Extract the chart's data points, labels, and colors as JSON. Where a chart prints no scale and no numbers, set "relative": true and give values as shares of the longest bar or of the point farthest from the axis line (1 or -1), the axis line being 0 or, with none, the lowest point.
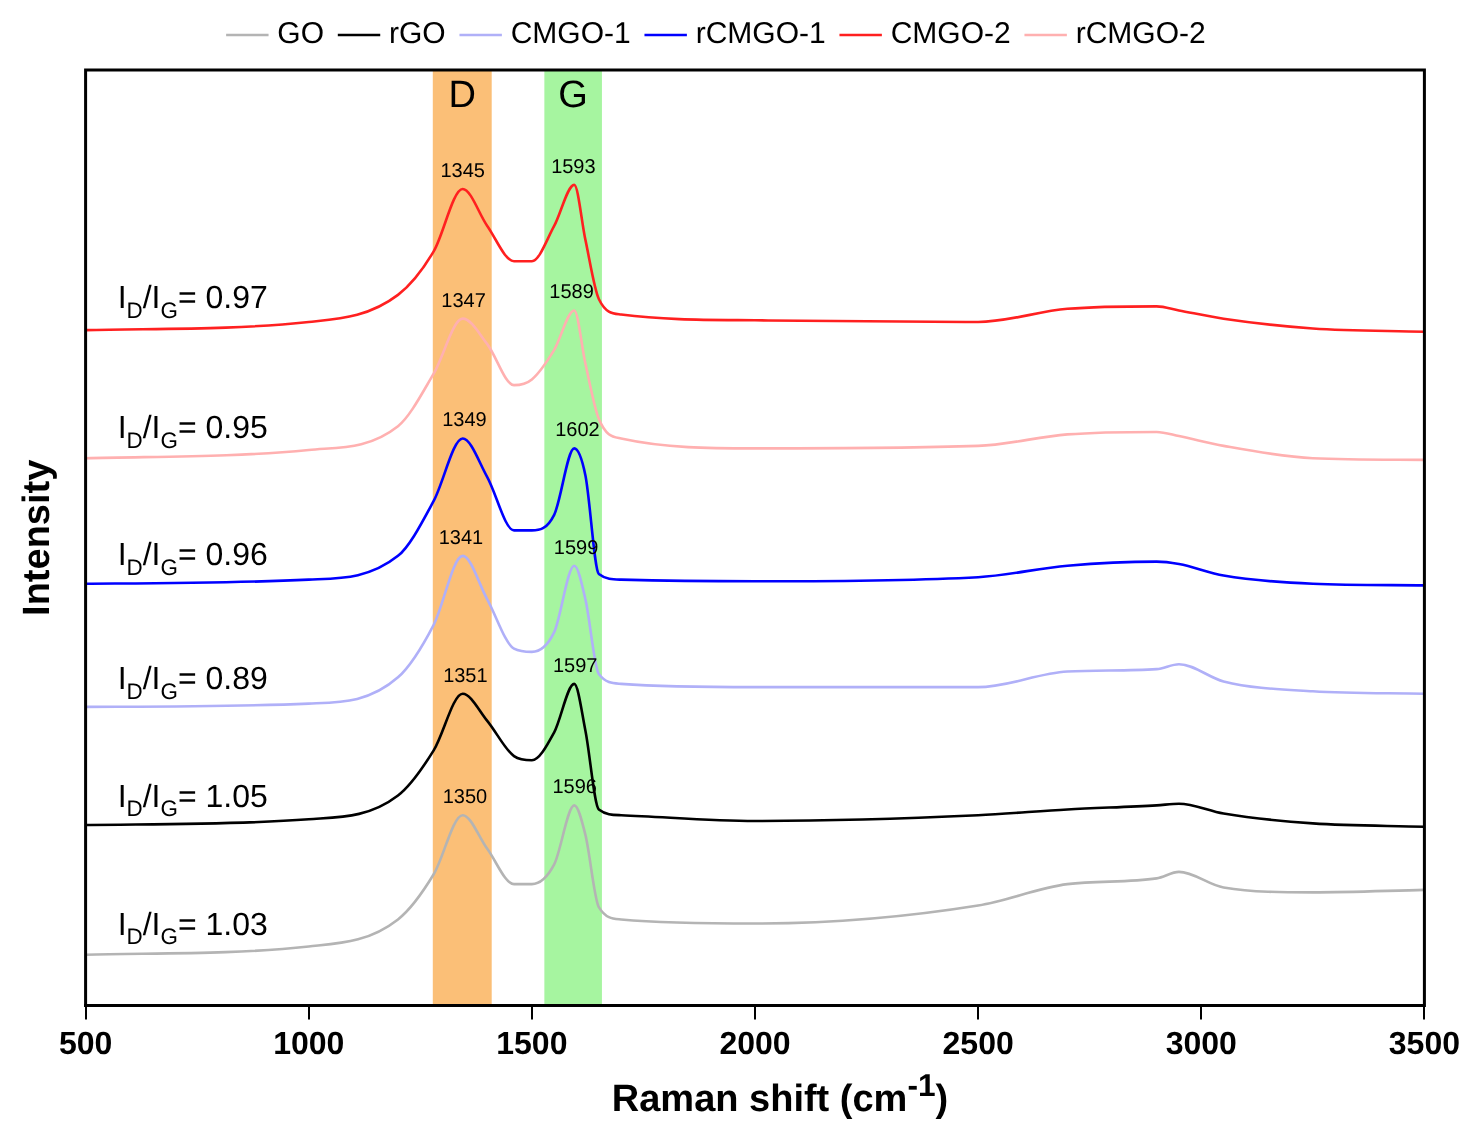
{
  "chart_data": {
    "type": "line",
    "relative": true,
    "xlabel": "Raman shift (cm$^{-1}$)",
    "ylabel": "Intensity",
    "x": [
      500,
      1000,
      1200,
      1280,
      1345,
      1400,
      1460,
      1500,
      1550,
      1595,
      1620,
      1650,
      1700,
      2000,
      2500,
      2700,
      2900,
      2950,
      3050,
      3250,
      3500
    ],
    "xlim": [
      500,
      3500
    ],
    "xticks": [
      500,
      1000,
      1500,
      2000,
      2500,
      3000,
      3500
    ],
    "series": [
      {
        "name": "GO",
        "color": "#b4b4b4",
        "values": [
          0.062,
          0.072,
          0.105,
          0.16,
          0.232,
          0.191,
          0.148,
          0.148,
          0.172,
          0.244,
          0.208,
          0.12,
          0.105,
          0.1,
          0.122,
          0.148,
          0.155,
          0.163,
          0.144,
          0.138,
          0.141
        ]
      },
      {
        "name": "rGO",
        "color": "#000000",
        "values": [
          0.22,
          0.227,
          0.256,
          0.311,
          0.38,
          0.347,
          0.304,
          0.299,
          0.333,
          0.392,
          0.335,
          0.239,
          0.232,
          0.225,
          0.232,
          0.239,
          0.244,
          0.246,
          0.234,
          0.222,
          0.218
        ]
      },
      {
        "name": "CMGO-1",
        "color": "#b0b0f8",
        "values": [
          0.364,
          0.368,
          0.4,
          0.464,
          0.548,
          0.495,
          0.435,
          0.431,
          0.455,
          0.536,
          0.495,
          0.404,
          0.392,
          0.388,
          0.388,
          0.407,
          0.41,
          0.416,
          0.395,
          0.383,
          0.38
        ]
      },
      {
        "name": "rCMGO-1",
        "color": "#0000ff",
        "values": [
          0.514,
          0.519,
          0.548,
          0.615,
          0.691,
          0.644,
          0.579,
          0.579,
          0.598,
          0.679,
          0.646,
          0.526,
          0.519,
          0.517,
          0.522,
          0.536,
          0.541,
          0.538,
          0.524,
          0.514,
          0.512
        ]
      },
      {
        "name": "CMGO-2",
        "color": "#ff2020",
        "values": [
          0.823,
          0.833,
          0.866,
          0.919,
          0.995,
          0.95,
          0.907,
          0.907,
          0.95,
          1.0,
          0.933,
          0.861,
          0.842,
          0.835,
          0.833,
          0.849,
          0.852,
          0.847,
          0.837,
          0.825,
          0.821
        ]
      },
      {
        "name": "rCMGO-2",
        "color": "#ffb0b0",
        "values": [
          0.667,
          0.677,
          0.706,
          0.77,
          0.837,
          0.806,
          0.756,
          0.763,
          0.799,
          0.847,
          0.782,
          0.715,
          0.691,
          0.679,
          0.682,
          0.696,
          0.699,
          0.694,
          0.682,
          0.667,
          0.665
        ]
      }
    ],
    "bands": [
      {
        "axis": "x",
        "from": 1278,
        "to": 1410,
        "label": "D",
        "color": "#fbbf77"
      },
      {
        "axis": "x",
        "from": 1528,
        "to": 1657,
        "label": "G",
        "color": "#a6f5a0"
      }
    ],
    "annotations": [
      {
        "text": "1345",
        "x": 1345,
        "y": 0.995
      },
      {
        "text": "1593",
        "x": 1593,
        "y": 1.0
      },
      {
        "text": "1347",
        "x": 1347,
        "y": 0.837
      },
      {
        "text": "1589",
        "x": 1589,
        "y": 0.847
      },
      {
        "text": "1349",
        "x": 1349,
        "y": 0.691
      },
      {
        "text": "1602",
        "x": 1602,
        "y": 0.679
      },
      {
        "text": "1341",
        "x": 1341,
        "y": 0.548
      },
      {
        "text": "1599",
        "x": 1599,
        "y": 0.536
      },
      {
        "text": "1351",
        "x": 1351,
        "y": 0.38
      },
      {
        "text": "1597",
        "x": 1597,
        "y": 0.392
      },
      {
        "text": "1350",
        "x": 1350,
        "y": 0.232
      },
      {
        "text": "1596",
        "x": 1596,
        "y": 0.244
      },
      {
        "text": "I$_{D}$/I$_{G}$= 0.97",
        "x": 740,
        "y": 0.83
      },
      {
        "text": "I$_{D}$/I$_{G}$= 0.95",
        "x": 740,
        "y": 0.672
      },
      {
        "text": "I$_{D}$/I$_{G}$= 0.96",
        "x": 740,
        "y": 0.517
      },
      {
        "text": "I$_{D}$/I$_{G}$= 0.89",
        "x": 740,
        "y": 0.366
      },
      {
        "text": "I$_{D}$/I$_{G}$= 1.05",
        "x": 740,
        "y": 0.223
      },
      {
        "text": "I$_{D}$/I$_{G}$= 1.03",
        "x": 740,
        "y": 0.067
      }
    ],
    "legend": "top",
    "grid": false,
    "marker": "none",
    "line_style": "solid"
  }
}
